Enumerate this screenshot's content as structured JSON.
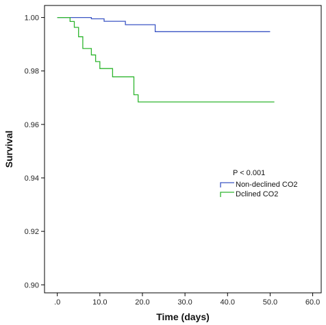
{
  "chart_data": {
    "type": "line",
    "step": true,
    "xlabel": "Time (days)",
    "ylabel": "Survival",
    "xlim": [
      -3,
      62
    ],
    "ylim": [
      0.897,
      1.0045
    ],
    "x_ticks": [
      0,
      10,
      20,
      30,
      40,
      50,
      60
    ],
    "x_tick_labels": [
      ".0",
      "10.0",
      "20.0",
      "30.0",
      "40.0",
      "50.0",
      "60.0"
    ],
    "y_ticks": [
      0.9,
      0.92,
      0.94,
      0.96,
      0.98,
      1.0
    ],
    "y_tick_labels": [
      "0.90",
      "0.92",
      "0.94",
      "0.96",
      "0.98",
      "1.00"
    ],
    "grid": false,
    "legend_position": "center-right",
    "annotation": "P < 0.001",
    "series": [
      {
        "name": "Non-declined CO2",
        "color": "#3a54c4",
        "x": [
          0,
          8,
          11,
          16,
          23,
          50
        ],
        "y": [
          1.0,
          0.9995,
          0.9986,
          0.9973,
          0.9947,
          0.9947
        ]
      },
      {
        "name": "Dclined CO2",
        "color": "#2db52d",
        "x": [
          0,
          3,
          4,
          5,
          6,
          8,
          9,
          10,
          13,
          18,
          19,
          51
        ],
        "y": [
          1.0,
          0.9985,
          0.9963,
          0.9928,
          0.9884,
          0.986,
          0.9835,
          0.9809,
          0.9778,
          0.9711,
          0.9684,
          0.9684
        ]
      }
    ]
  }
}
